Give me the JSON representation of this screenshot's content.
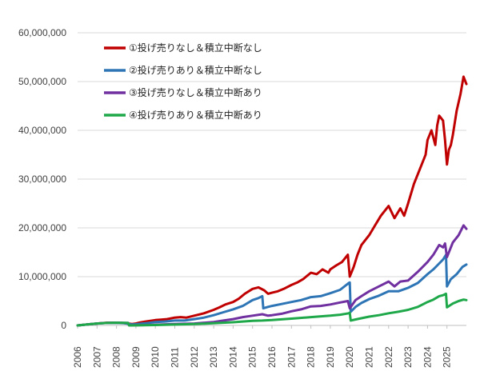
{
  "chart_data": {
    "type": "line",
    "grid": true,
    "legend_position": "top-left",
    "ylim": [
      0,
      60000000
    ],
    "yticks": [
      "0",
      "10,000,000",
      "20,000,000",
      "30,000,000",
      "40,000,000",
      "50,000,000",
      "60,000,000"
    ],
    "ytick_values": [
      0,
      10000000,
      20000000,
      30000000,
      40000000,
      50000000,
      60000000
    ],
    "xlim": [
      2006,
      2026
    ],
    "xticks": [
      "2006",
      "2007",
      "2008",
      "2009",
      "2010",
      "2011",
      "2012",
      "2013",
      "2014",
      "2015",
      "2016",
      "2017",
      "2018",
      "2019",
      "2020",
      "2021",
      "2022",
      "2023",
      "2024",
      "2025"
    ],
    "series": [
      {
        "name": "①投げ売りなし＆積立中断なし",
        "color": "#c00000",
        "x": [
          2006.0,
          2006.5,
          2007.0,
          2007.5,
          2008.0,
          2008.3,
          2008.6,
          2008.8,
          2009.0,
          2009.2,
          2009.5,
          2010.0,
          2010.3,
          2010.6,
          2011.0,
          2011.3,
          2011.6,
          2012.0,
          2012.5,
          2013.0,
          2013.3,
          2013.6,
          2014.0,
          2014.3,
          2014.6,
          2015.0,
          2015.3,
          2015.6,
          2015.8,
          2016.0,
          2016.3,
          2016.6,
          2017.0,
          2017.3,
          2017.6,
          2018.0,
          2018.3,
          2018.6,
          2018.9,
          2019.0,
          2019.3,
          2019.6,
          2019.9,
          2020.0,
          2020.2,
          2020.4,
          2020.6,
          2021.0,
          2021.3,
          2021.6,
          2022.0,
          2022.3,
          2022.6,
          2022.8,
          2023.0,
          2023.3,
          2023.6,
          2023.9,
          2024.0,
          2024.2,
          2024.4,
          2024.5,
          2024.6,
          2024.8,
          2024.9,
          2025.0,
          2025.1,
          2025.2,
          2025.3,
          2025.5,
          2025.7,
          2025.85,
          2026.0
        ],
        "values": [
          0,
          200000,
          400000,
          550000,
          550000,
          500000,
          400000,
          300000,
          400000,
          600000,
          800000,
          1100000,
          1200000,
          1300000,
          1600000,
          1700000,
          1600000,
          2000000,
          2500000,
          3200000,
          3700000,
          4300000,
          4800000,
          5500000,
          6500000,
          7500000,
          7800000,
          7200000,
          6500000,
          6700000,
          7000000,
          7500000,
          8300000,
          8800000,
          9500000,
          10800000,
          10500000,
          11500000,
          10800000,
          11500000,
          12300000,
          13000000,
          14500000,
          10000000,
          12000000,
          14500000,
          16500000,
          18500000,
          20500000,
          22500000,
          24500000,
          22000000,
          24000000,
          22500000,
          25000000,
          29000000,
          32000000,
          35000000,
          38000000,
          40000000,
          37000000,
          41000000,
          43000000,
          42000000,
          38000000,
          33000000,
          36000000,
          37000000,
          39000000,
          44000000,
          47500000,
          51000000,
          49500000
        ]
      },
      {
        "name": "②投げ売りあり＆積立中断なし",
        "color": "#2e75b6",
        "x": [
          2006.0,
          2006.5,
          2007.0,
          2007.5,
          2008.0,
          2008.4,
          2008.8,
          2009.0,
          2009.5,
          2010.0,
          2010.5,
          2011.0,
          2011.5,
          2012.0,
          2012.5,
          2013.0,
          2013.5,
          2014.0,
          2014.5,
          2015.0,
          2015.3,
          2015.5,
          2015.55,
          2015.8,
          2016.0,
          2016.5,
          2017.0,
          2017.5,
          2018.0,
          2018.5,
          2019.0,
          2019.5,
          2019.95,
          2020.0,
          2020.05,
          2020.3,
          2020.6,
          2021.0,
          2021.5,
          2022.0,
          2022.5,
          2023.0,
          2023.5,
          2024.0,
          2024.3,
          2024.6,
          2024.8,
          2024.95,
          2025.0,
          2025.2,
          2025.5,
          2025.8,
          2026.0
        ],
        "values": [
          0,
          200000,
          400000,
          500000,
          500000,
          450000,
          200000,
          250000,
          450000,
          700000,
          800000,
          1000000,
          1000000,
          1300000,
          1600000,
          2100000,
          2700000,
          3300000,
          4000000,
          5200000,
          5600000,
          6000000,
          3500000,
          3800000,
          4000000,
          4400000,
          4800000,
          5200000,
          5800000,
          6000000,
          6600000,
          7300000,
          8700000,
          8800000,
          2800000,
          3800000,
          4600000,
          5400000,
          6100000,
          7000000,
          7000000,
          7700000,
          8700000,
          10500000,
          11500000,
          12700000,
          13500000,
          14500000,
          8000000,
          9500000,
          10500000,
          12000000,
          12500000
        ]
      },
      {
        "name": "③投げ売りなし＆積立中断あり",
        "color": "#7030a0",
        "x": [
          2006.0,
          2006.5,
          2007.0,
          2007.5,
          2008.0,
          2008.6,
          2008.65,
          2009.0,
          2009.5,
          2010.0,
          2011.0,
          2012.0,
          2013.0,
          2013.5,
          2014.0,
          2014.5,
          2015.0,
          2015.5,
          2015.8,
          2016.0,
          2016.5,
          2017.0,
          2017.5,
          2018.0,
          2018.5,
          2019.0,
          2019.5,
          2019.9,
          2020.0,
          2020.3,
          2020.6,
          2021.0,
          2021.5,
          2022.0,
          2022.3,
          2022.6,
          2023.0,
          2023.5,
          2024.0,
          2024.3,
          2024.6,
          2024.8,
          2024.9,
          2025.0,
          2025.3,
          2025.6,
          2025.85,
          2026.0
        ],
        "values": [
          0,
          200000,
          400000,
          500000,
          550000,
          500000,
          0,
          30000,
          80000,
          150000,
          300000,
          400000,
          700000,
          1000000,
          1300000,
          1700000,
          2000000,
          2300000,
          2000000,
          2100000,
          2400000,
          2900000,
          3300000,
          3900000,
          4000000,
          4300000,
          4700000,
          5000000,
          3500000,
          5200000,
          6000000,
          7000000,
          8000000,
          9000000,
          8000000,
          9000000,
          9200000,
          11000000,
          13000000,
          14500000,
          16500000,
          16000000,
          16800000,
          14000000,
          17000000,
          18500000,
          20500000,
          19800000
        ]
      },
      {
        "name": "④投げ売りあり＆積立中断あり",
        "color": "#1ea84a",
        "x": [
          2006.0,
          2006.5,
          2007.0,
          2007.5,
          2008.0,
          2008.6,
          2008.65,
          2009.0,
          2010.0,
          2011.0,
          2012.0,
          2013.0,
          2014.0,
          2014.5,
          2015.0,
          2015.5,
          2016.0,
          2017.0,
          2018.0,
          2019.0,
          2019.5,
          2019.95,
          2020.0,
          2020.05,
          2020.5,
          2021.0,
          2021.5,
          2022.0,
          2022.5,
          2023.0,
          2023.5,
          2024.0,
          2024.3,
          2024.6,
          2024.8,
          2024.95,
          2025.0,
          2025.3,
          2025.6,
          2025.85,
          2026.0
        ],
        "values": [
          0,
          200000,
          400000,
          500000,
          550000,
          500000,
          0,
          20000,
          80000,
          180000,
          280000,
          450000,
          650000,
          800000,
          950000,
          1000000,
          1100000,
          1400000,
          1700000,
          2000000,
          2200000,
          2500000,
          2600000,
          1000000,
          1400000,
          1800000,
          2100000,
          2500000,
          2800000,
          3200000,
          3800000,
          4800000,
          5300000,
          6000000,
          6200000,
          6500000,
          3700000,
          4500000,
          5000000,
          5300000,
          5200000
        ]
      }
    ]
  }
}
